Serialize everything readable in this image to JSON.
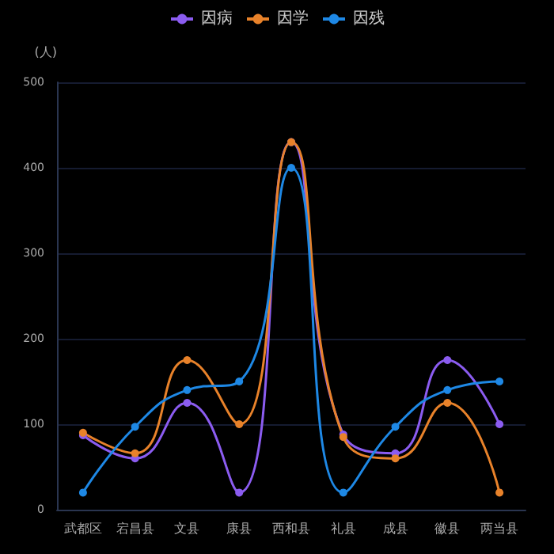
{
  "chart_data": {
    "type": "line",
    "ylabel": "(人)",
    "categories": [
      "武都区",
      "宕昌县",
      "文县",
      "康县",
      "西和县",
      "礼县",
      "成县",
      "徽县",
      "两当县"
    ],
    "series": [
      {
        "name": "因病",
        "color": "#8b5cf0",
        "values": [
          87,
          60,
          125,
          20,
          430,
          88,
          66,
          175,
          100
        ]
      },
      {
        "name": "因学",
        "color": "#e8822a",
        "values": [
          90,
          66,
          175,
          100,
          430,
          85,
          60,
          125,
          20
        ]
      },
      {
        "name": "因残",
        "color": "#1e88e5",
        "values": [
          20,
          97,
          140,
          150,
          400,
          20,
          97,
          140,
          150
        ]
      }
    ],
    "ylim": [
      0,
      500
    ],
    "yticks": [
      0,
      100,
      200,
      300,
      400,
      500
    ],
    "grid": "y",
    "legend": "top",
    "marker": "circle",
    "line_style": "solid"
  }
}
